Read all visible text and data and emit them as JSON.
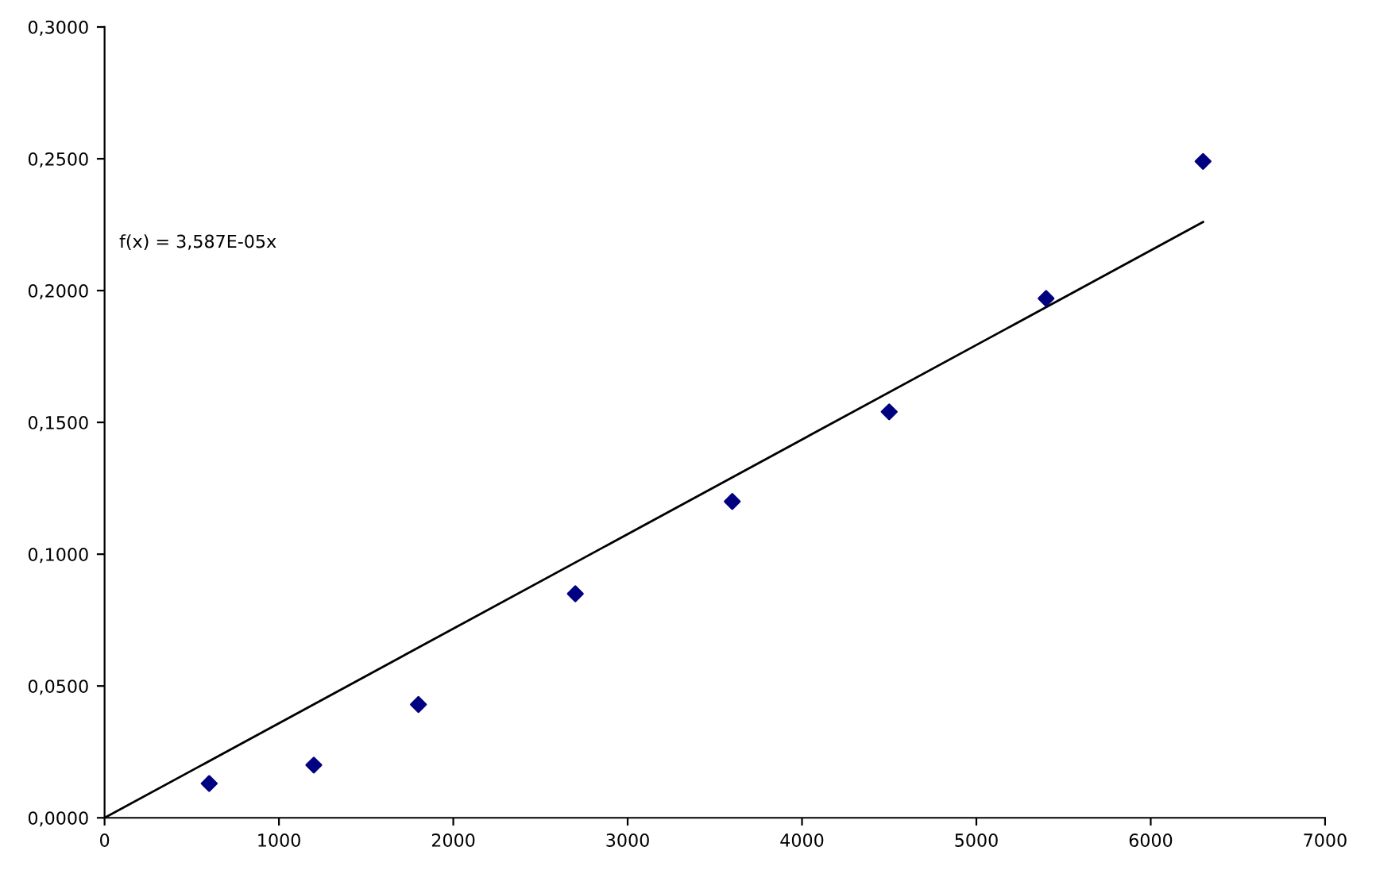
{
  "chart_data": {
    "type": "scatter",
    "x": [
      600,
      1200,
      1800,
      2700,
      3600,
      4500,
      5400,
      6300
    ],
    "series": [
      {
        "color": "#000080",
        "marker": "diamond",
        "values": [
          0.013,
          0.02,
          0.043,
          0.085,
          0.12,
          0.154,
          0.197,
          0.249
        ]
      },
      {
        "type": "line",
        "color": "#000000",
        "marker": "none",
        "line_style": "solid",
        "x": [
          0,
          6300
        ],
        "values": [
          0,
          0.226
        ]
      }
    ],
    "annotations": [
      "f(x) = 3,587E-05x"
    ],
    "xlim": [
      0,
      7000
    ],
    "xticks": [
      0,
      1000,
      2000,
      3000,
      4000,
      5000,
      6000,
      7000
    ],
    "ylim": [
      0,
      0.3
    ],
    "yticks": [
      {
        "value": 0,
        "label": "0,0000"
      },
      {
        "value": 0.05,
        "label": "0,0500"
      },
      {
        "value": 0.1,
        "label": "0,1000"
      },
      {
        "value": 0.15,
        "label": "0,1500"
      },
      {
        "value": 0.2,
        "label": "0,2000"
      },
      {
        "value": 0.25,
        "label": "0,2500"
      },
      {
        "value": 0.3,
        "label": "0,3000"
      }
    ],
    "grid": false,
    "legend": false
  }
}
